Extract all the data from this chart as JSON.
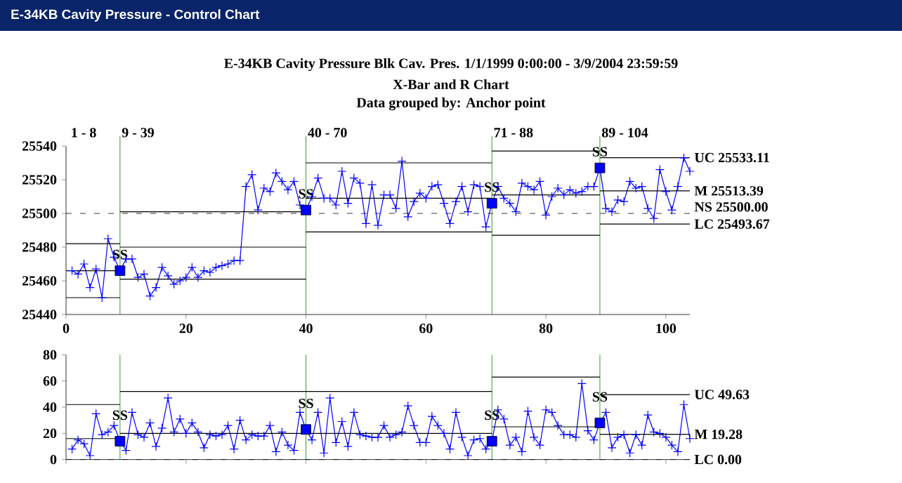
{
  "chart_data": [
    {
      "type": "line",
      "title": "E-34KB Cavity Pressure - Control Chart",
      "subtitle": "E-34KB Cavity Pressure   Blk Cav. Pres.   1/1/1999 0:00:00 - 3/9/2004 23:59:59",
      "annotations": [
        "X-Bar and R Chart",
        "Data grouped by: Anchor point",
        "1 - 8"
      ],
      "xlim": [
        0,
        104
      ],
      "xticks": [
        0,
        20,
        40,
        60,
        80,
        100
      ],
      "ylim": [
        25440,
        25540
      ],
      "yticks": [
        25440,
        25460,
        25480,
        25500,
        25520,
        25540
      ],
      "marker": "cross",
      "ref_lines": [
        {
          "axis": "y",
          "value": 25500,
          "label": "NS 25500.00",
          "color": "#000000",
          "line_style": "dashed"
        },
        {
          "axis": "x",
          "value": 9,
          "label": "9 - 39",
          "color": "#008000"
        },
        {
          "axis": "x",
          "value": 40,
          "label": "40 - 70",
          "color": "#008000"
        },
        {
          "axis": "x",
          "value": 71,
          "label": "71 - 88",
          "color": "#008000"
        },
        {
          "axis": "x",
          "value": 89,
          "label": "89 - 104",
          "color": "#008000"
        }
      ],
      "series": [
        {
          "color": "#0000ff",
          "x": [
            1,
            2,
            3,
            4,
            5,
            6,
            7,
            8,
            9,
            10,
            11,
            12,
            13,
            14,
            15,
            16,
            17,
            18,
            19,
            20,
            21,
            22,
            23,
            24,
            25,
            26,
            27,
            28,
            29,
            30,
            31,
            32,
            33,
            34,
            35,
            36,
            37,
            38,
            39,
            40,
            41,
            42,
            43,
            44,
            45,
            46,
            47,
            48,
            49,
            50,
            51,
            52,
            53,
            54,
            55,
            56,
            57,
            58,
            59,
            60,
            61,
            62,
            63,
            64,
            65,
            66,
            67,
            68,
            69,
            70,
            71,
            72,
            73,
            74,
            75,
            76,
            77,
            78,
            79,
            80,
            81,
            82,
            83,
            84,
            85,
            86,
            87,
            88,
            89,
            90,
            91,
            92,
            93,
            94,
            95,
            96,
            97,
            98,
            99,
            100,
            101,
            102,
            103,
            104
          ],
          "values": [
            25466,
            25464,
            25470,
            25456,
            25467,
            25450,
            25485,
            25474,
            25466,
            25473,
            25473,
            25462,
            25464,
            25451,
            25456,
            25468,
            25463,
            25458,
            25460,
            25462,
            25468,
            25462,
            25466,
            25465,
            25468,
            25469,
            25470,
            25472,
            25472,
            25516,
            25523,
            25502,
            25515,
            25513,
            25524,
            25519,
            25514,
            25519,
            25505,
            25502,
            25510,
            25521,
            25509,
            25509,
            25505,
            25525,
            25506,
            25521,
            25518,
            25494,
            25517,
            25493,
            25511,
            25511,
            25503,
            25531,
            25498,
            25507,
            25512,
            25509,
            25516,
            25517,
            25506,
            25494,
            25507,
            25516,
            25501,
            25517,
            25516,
            25492,
            25506,
            25516,
            25509,
            25506,
            25501,
            25518,
            25516,
            25514,
            25519,
            25499,
            25510,
            25515,
            25511,
            25514,
            25512,
            25513,
            25516,
            25516,
            25527,
            25503,
            25501,
            25508,
            25507,
            25519,
            25515,
            25516,
            25503,
            25497,
            25526,
            25513,
            25502,
            25516,
            25533,
            25525
          ]
        },
        {
          "color": "#000000",
          "marker": "none",
          "x": [
            0,
            9
          ],
          "values": [
            25482,
            25482
          ]
        },
        {
          "color": "#000000",
          "marker": "none",
          "x": [
            9,
            40
          ],
          "values": [
            25501,
            25501
          ]
        },
        {
          "color": "#000000",
          "marker": "none",
          "x": [
            40,
            71
          ],
          "values": [
            25530,
            25530
          ]
        },
        {
          "color": "#000000",
          "marker": "none",
          "x": [
            71,
            89
          ],
          "values": [
            25537,
            25537
          ]
        },
        {
          "name": "UC 25533.11",
          "color": "#000000",
          "marker": "none",
          "x": [
            89,
            104
          ],
          "values": [
            25533.11,
            25533.11
          ]
        },
        {
          "color": "#000000",
          "marker": "none",
          "x": [
            0,
            9
          ],
          "values": [
            25466,
            25466
          ]
        },
        {
          "color": "#000000",
          "marker": "none",
          "x": [
            9,
            40
          ],
          "values": [
            25480,
            25480
          ]
        },
        {
          "color": "#000000",
          "marker": "none",
          "x": [
            40,
            71
          ],
          "values": [
            25509,
            25509
          ]
        },
        {
          "color": "#000000",
          "marker": "none",
          "x": [
            71,
            89
          ],
          "values": [
            25511,
            25511
          ]
        },
        {
          "name": "M 25513.39",
          "color": "#000000",
          "marker": "none",
          "x": [
            89,
            104
          ],
          "values": [
            25513.39,
            25513.39
          ]
        },
        {
          "color": "#000000",
          "marker": "none",
          "x": [
            0,
            9
          ],
          "values": [
            25450,
            25450
          ]
        },
        {
          "color": "#000000",
          "marker": "none",
          "x": [
            9,
            40
          ],
          "values": [
            25461,
            25461
          ]
        },
        {
          "color": "#000000",
          "marker": "none",
          "x": [
            40,
            71
          ],
          "values": [
            25489,
            25489
          ]
        },
        {
          "color": "#000000",
          "marker": "none",
          "x": [
            71,
            89
          ],
          "values": [
            25487,
            25487
          ]
        },
        {
          "name": "LC 25493.67",
          "color": "#000000",
          "marker": "none",
          "x": [
            89,
            104
          ],
          "values": [
            25493.67,
            25493.67
          ]
        },
        {
          "type": "scatter",
          "color": "#0000ff",
          "marker": "square",
          "x": [
            9,
            40,
            71,
            89
          ],
          "values": [
            25466,
            25502,
            25506,
            25527
          ],
          "value_labels": [
            "SS",
            "SS",
            "SS",
            "SS"
          ]
        }
      ]
    },
    {
      "type": "line",
      "xlim": [
        0,
        104
      ],
      "xticks": [
        0,
        20,
        40,
        60,
        80,
        100
      ],
      "ylim": [
        0,
        80
      ],
      "yticks": [
        0,
        20,
        40,
        60,
        80
      ],
      "tick_labels": "y",
      "marker": "cross",
      "ref_lines": [
        {
          "axis": "y",
          "value": 0,
          "label": "LC 0.00",
          "color": "#000000"
        },
        {
          "axis": "x",
          "value": 9,
          "color": "#008000"
        },
        {
          "axis": "x",
          "value": 40,
          "color": "#008000"
        },
        {
          "axis": "x",
          "value": 71,
          "color": "#008000"
        },
        {
          "axis": "x",
          "value": 89,
          "color": "#008000"
        }
      ],
      "series": [
        {
          "color": "#0000ff",
          "x": [
            1,
            2,
            3,
            4,
            5,
            6,
            7,
            8,
            9,
            10,
            11,
            12,
            13,
            14,
            15,
            16,
            17,
            18,
            19,
            20,
            21,
            22,
            23,
            24,
            25,
            26,
            27,
            28,
            29,
            30,
            31,
            32,
            33,
            34,
            35,
            36,
            37,
            38,
            39,
            40,
            41,
            42,
            43,
            44,
            45,
            46,
            47,
            48,
            49,
            50,
            51,
            52,
            53,
            54,
            55,
            56,
            57,
            58,
            59,
            60,
            61,
            62,
            63,
            64,
            65,
            66,
            67,
            68,
            69,
            70,
            71,
            72,
            73,
            74,
            75,
            76,
            77,
            78,
            79,
            80,
            81,
            82,
            83,
            84,
            85,
            86,
            87,
            88,
            89,
            90,
            91,
            92,
            93,
            94,
            95,
            96,
            97,
            98,
            99,
            100,
            101,
            102,
            103,
            104
          ],
          "values": [
            8,
            15,
            12,
            3,
            35,
            19,
            21,
            26,
            14,
            7,
            36,
            19,
            17,
            28,
            10,
            24,
            47,
            21,
            31,
            20,
            28,
            21,
            9,
            19,
            18,
            19,
            26,
            8,
            30,
            15,
            19,
            18,
            18,
            26,
            6,
            21,
            11,
            7,
            36,
            23,
            15,
            36,
            5,
            47,
            13,
            29,
            10,
            36,
            19,
            18,
            17,
            17,
            26,
            17,
            19,
            21,
            41,
            26,
            13,
            13,
            33,
            26,
            20,
            8,
            36,
            17,
            3,
            15,
            16,
            8,
            14,
            38,
            31,
            11,
            17,
            6,
            37,
            17,
            11,
            38,
            36,
            26,
            19,
            19,
            17,
            58,
            22,
            15,
            28,
            36,
            9,
            17,
            19,
            5,
            19,
            11,
            34,
            21,
            20,
            17,
            11,
            6,
            42,
            16
          ]
        },
        {
          "color": "#000000",
          "marker": "none",
          "x": [
            0,
            9
          ],
          "values": [
            42,
            42
          ]
        },
        {
          "color": "#000000",
          "marker": "none",
          "x": [
            9,
            71
          ],
          "values": [
            52,
            52
          ]
        },
        {
          "color": "#000000",
          "marker": "none",
          "x": [
            71,
            89
          ],
          "values": [
            63,
            63
          ]
        },
        {
          "name": "UC 49.63",
          "color": "#000000",
          "marker": "none",
          "x": [
            89,
            104
          ],
          "values": [
            49.63,
            49.63
          ]
        },
        {
          "color": "#000000",
          "marker": "none",
          "x": [
            0,
            9
          ],
          "values": [
            16,
            16
          ]
        },
        {
          "color": "#000000",
          "marker": "none",
          "x": [
            9,
            40
          ],
          "values": [
            20,
            20
          ]
        },
        {
          "color": "#000000",
          "marker": "none",
          "x": [
            40,
            71
          ],
          "values": [
            20,
            20
          ]
        },
        {
          "color": "#000000",
          "marker": "none",
          "x": [
            71,
            89
          ],
          "values": [
            25,
            25
          ]
        },
        {
          "name": "M 19.28",
          "color": "#000000",
          "marker": "none",
          "x": [
            89,
            104
          ],
          "values": [
            19.28,
            19.28
          ]
        },
        {
          "type": "scatter",
          "color": "#0000ff",
          "marker": "square",
          "x": [
            9,
            40,
            71,
            89
          ],
          "values": [
            14,
            23,
            14,
            28
          ],
          "value_labels": [
            "SS",
            "SS",
            "SS",
            "SS"
          ]
        }
      ]
    }
  ]
}
